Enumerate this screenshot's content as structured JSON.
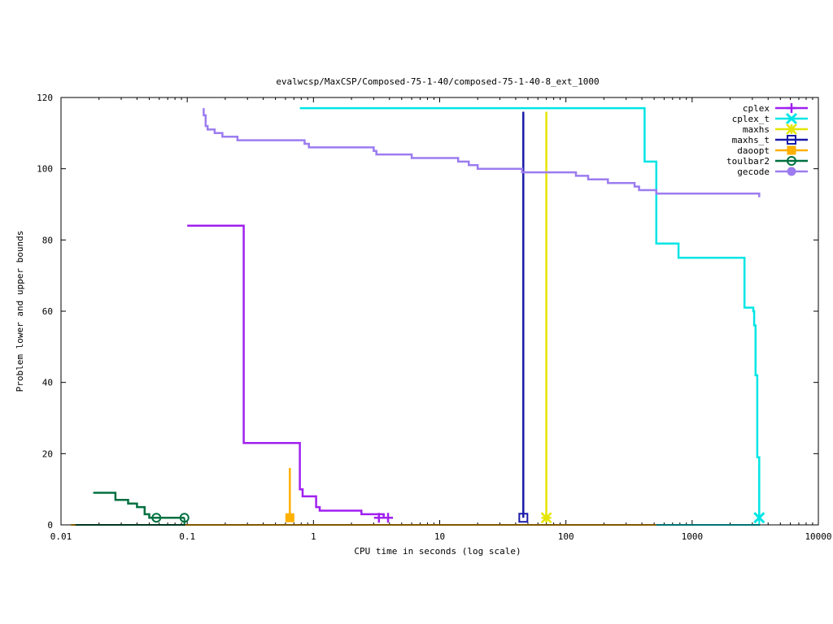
{
  "chart_data": {
    "type": "line",
    "title": "evalwcsp/MaxCSP/Composed-75-1-40/composed-75-1-40-8_ext_1000",
    "xlabel": "CPU time in seconds (log scale)",
    "ylabel": "Problem lower and upper bounds",
    "xscale": "log",
    "xlim": [
      0.01,
      10000
    ],
    "ylim": [
      0,
      120
    ],
    "x_ticks": [
      "0.01",
      "0.1",
      "1",
      "10",
      "100",
      "1000",
      "10000"
    ],
    "y_ticks": [
      "0",
      "20",
      "40",
      "60",
      "80",
      "100",
      "120"
    ],
    "legend_position": "top-right",
    "series": [
      {
        "name": "cplex",
        "color": "#a020f0",
        "marker": "plus",
        "upper": [
          [
            0.1,
            84
          ],
          [
            0.28,
            84
          ],
          [
            0.28,
            23
          ],
          [
            0.78,
            23
          ],
          [
            0.78,
            10
          ],
          [
            0.82,
            10
          ],
          [
            0.82,
            8
          ],
          [
            1.05,
            8
          ],
          [
            1.05,
            5
          ],
          [
            1.12,
            5
          ],
          [
            1.12,
            4
          ],
          [
            2.4,
            4
          ],
          [
            2.4,
            3
          ],
          [
            3.6,
            3
          ],
          [
            3.6,
            2
          ],
          [
            3.9,
            2
          ]
        ],
        "lower": [],
        "markers": [
          [
            3.3,
            2
          ],
          [
            3.9,
            2
          ]
        ]
      },
      {
        "name": "cplex_t",
        "color": "#00e5e5",
        "marker": "cross",
        "upper": [
          [
            0.78,
            117
          ],
          [
            420,
            117
          ],
          [
            420,
            102
          ],
          [
            520,
            102
          ],
          [
            520,
            79
          ],
          [
            780,
            79
          ],
          [
            780,
            75
          ],
          [
            2600,
            75
          ],
          [
            2600,
            61
          ],
          [
            3050,
            61
          ],
          [
            3050,
            60
          ],
          [
            3100,
            60
          ],
          [
            3100,
            56
          ],
          [
            3180,
            56
          ],
          [
            3180,
            42
          ],
          [
            3280,
            42
          ],
          [
            3280,
            19
          ],
          [
            3400,
            19
          ],
          [
            3400,
            2
          ]
        ],
        "lower": [
          [
            520,
            0
          ],
          [
            3400,
            0
          ],
          [
            3400,
            2
          ]
        ],
        "markers": [
          [
            3400,
            2
          ]
        ]
      },
      {
        "name": "maxhs",
        "color": "#e5e500",
        "marker": "star",
        "upper": [
          [
            70,
            116
          ],
          [
            70,
            2
          ]
        ],
        "lower": [],
        "markers": [
          [
            70,
            2
          ]
        ]
      },
      {
        "name": "maxhs_t",
        "color": "#1a1aaa",
        "marker": "box",
        "upper": [
          [
            46,
            116
          ],
          [
            46,
            2
          ]
        ],
        "lower": [],
        "markers": [
          [
            46,
            2
          ]
        ]
      },
      {
        "name": "daoopt",
        "color": "#ffb000",
        "marker": "filled-box",
        "upper": [
          [
            0.65,
            16
          ],
          [
            0.65,
            2
          ]
        ],
        "lower": [
          [
            0.012,
            0
          ],
          [
            520,
            0
          ]
        ],
        "markers": [
          [
            0.65,
            2
          ]
        ]
      },
      {
        "name": "toulbar2",
        "color": "#007040",
        "marker": "circle",
        "upper": [
          [
            0.018,
            9
          ],
          [
            0.027,
            9
          ],
          [
            0.027,
            7
          ],
          [
            0.034,
            7
          ],
          [
            0.034,
            6
          ],
          [
            0.04,
            6
          ],
          [
            0.04,
            5
          ],
          [
            0.046,
            5
          ],
          [
            0.046,
            3
          ],
          [
            0.05,
            3
          ],
          [
            0.05,
            2
          ],
          [
            0.095,
            2
          ]
        ],
        "lower": [
          [
            0.013,
            0
          ],
          [
            0.095,
            0
          ],
          [
            0.095,
            2
          ]
        ],
        "markers": [
          [
            0.057,
            2
          ],
          [
            0.095,
            2
          ]
        ]
      },
      {
        "name": "gecode",
        "color": "#9c7cf0",
        "marker": "filled-circle",
        "upper": [
          [
            0.135,
            117
          ],
          [
            0.135,
            115
          ],
          [
            0.14,
            115
          ],
          [
            0.14,
            112
          ],
          [
            0.145,
            112
          ],
          [
            0.145,
            111
          ],
          [
            0.165,
            111
          ],
          [
            0.165,
            110
          ],
          [
            0.19,
            110
          ],
          [
            0.19,
            109
          ],
          [
            0.25,
            109
          ],
          [
            0.25,
            108
          ],
          [
            0.85,
            108
          ],
          [
            0.85,
            107
          ],
          [
            0.92,
            107
          ],
          [
            0.92,
            106
          ],
          [
            3.0,
            106
          ],
          [
            3.0,
            105
          ],
          [
            3.15,
            105
          ],
          [
            3.15,
            104
          ],
          [
            6.0,
            104
          ],
          [
            6.0,
            103
          ],
          [
            14,
            103
          ],
          [
            14,
            102
          ],
          [
            17,
            102
          ],
          [
            17,
            101
          ],
          [
            20,
            101
          ],
          [
            20,
            100
          ],
          [
            45,
            100
          ],
          [
            45,
            99
          ],
          [
            120,
            99
          ],
          [
            120,
            98
          ],
          [
            150,
            98
          ],
          [
            150,
            97
          ],
          [
            215,
            97
          ],
          [
            215,
            96
          ],
          [
            350,
            96
          ],
          [
            350,
            95
          ],
          [
            380,
            95
          ],
          [
            380,
            94
          ],
          [
            520,
            94
          ],
          [
            520,
            93
          ],
          [
            3400,
            93
          ],
          [
            3400,
            92
          ]
        ],
        "lower": [],
        "markers": []
      }
    ]
  }
}
